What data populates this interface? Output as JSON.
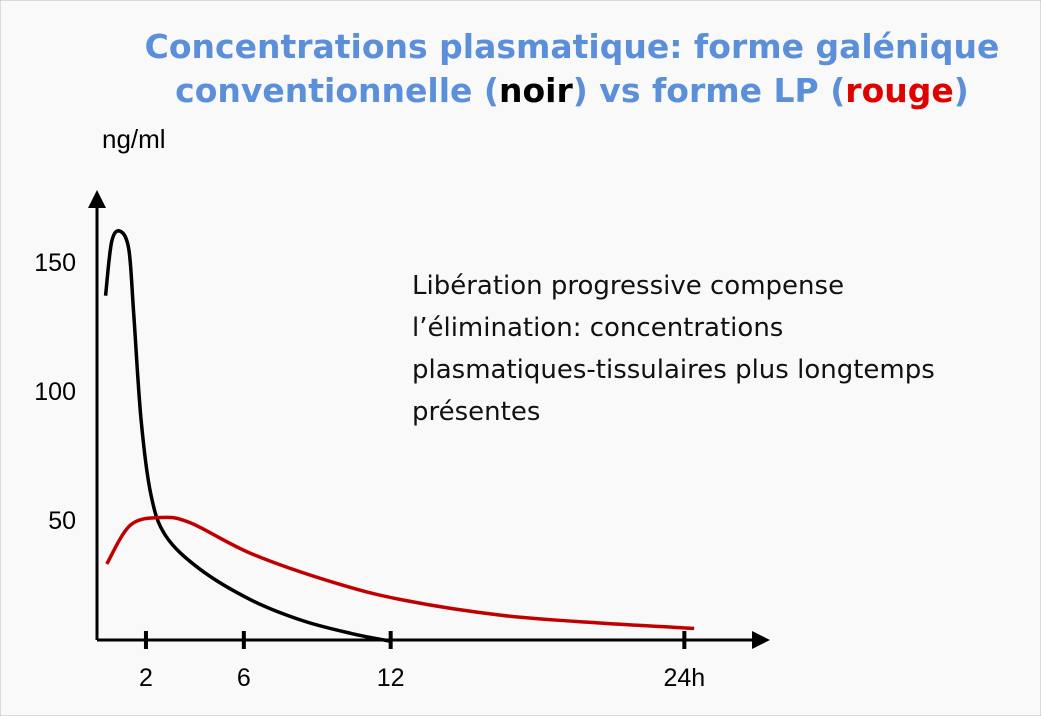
{
  "chart_data": {
    "type": "line",
    "title_lines": [
      [
        {
          "text": "Concentrations plasmatique: forme galénique",
          "color": "#5b8fd9"
        }
      ],
      [
        {
          "text": "conventionnelle (",
          "color": "#5b8fd9"
        },
        {
          "text": "noir",
          "color": "#000000"
        },
        {
          "text": ") vs forme LP (",
          "color": "#5b8fd9"
        },
        {
          "text": "rouge",
          "color": "#e00000"
        },
        {
          "text": ")",
          "color": "#5b8fd9"
        }
      ]
    ],
    "y_label": "ng/ml",
    "annotation": [
      "Libération progressive compense",
      "l’élimination: concentrations",
      "plasmatiques-tissulaires plus longtemps",
      "présentes"
    ],
    "xlim": [
      0,
      27.5
    ],
    "ylim": [
      0,
      178
    ],
    "xticks": [
      2,
      6,
      12,
      {
        "value": 24,
        "label": "24h"
      }
    ],
    "yticks": [
      50,
      100,
      150
    ],
    "series": [
      {
        "color": "#000000",
        "x": [
          0.35,
          0.6,
          0.95,
          1.3,
          1.5,
          1.8,
          2.2,
          2.8,
          4.2,
          6.3,
          8.4,
          10.4,
          12
        ],
        "values": [
          137,
          158,
          162,
          155,
          130,
          89,
          60,
          44,
          31,
          19,
          11,
          6,
          3
        ]
      },
      {
        "color": "#c00000",
        "x": [
          0.4,
          1.36,
          2.6,
          3.8,
          6.3,
          9.6,
          12.5,
          16.6,
          20.7,
          24.4
        ],
        "values": [
          33,
          48,
          51,
          49,
          37,
          26,
          19,
          13,
          10,
          8
        ]
      }
    ]
  }
}
